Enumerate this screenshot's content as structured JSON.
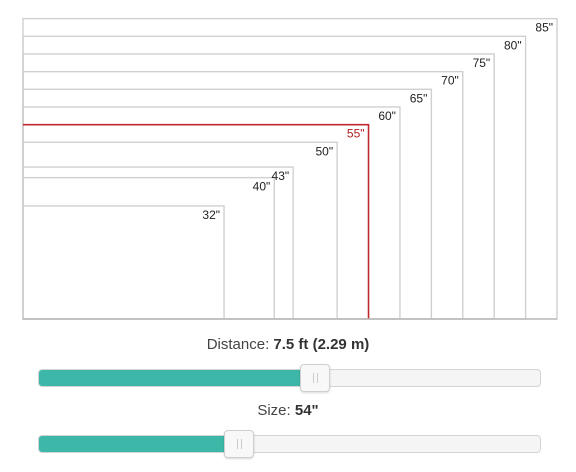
{
  "chart_data": {
    "type": "nested-rectangles",
    "sizes": [
      {
        "label": "32\"",
        "inches": 32
      },
      {
        "label": "40\"",
        "inches": 40
      },
      {
        "label": "43\"",
        "inches": 43
      },
      {
        "label": "50\"",
        "inches": 50
      },
      {
        "label": "55\"",
        "inches": 55
      },
      {
        "label": "60\"",
        "inches": 60
      },
      {
        "label": "65\"",
        "inches": 65
      },
      {
        "label": "70\"",
        "inches": 70
      },
      {
        "label": "75\"",
        "inches": 75
      },
      {
        "label": "80\"",
        "inches": 80
      },
      {
        "label": "85\"",
        "inches": 85
      }
    ],
    "highlighted": "55\"",
    "colors": {
      "outline": "#d0d0d0",
      "highlight": "#c0282d",
      "baseline": "#bdbdbd"
    }
  },
  "distance": {
    "label": "Distance:",
    "value": "7.5 ft (2.29 m)",
    "position_fraction": 0.55
  },
  "size": {
    "label": "Size:",
    "value": "54\"",
    "position_fraction": 0.4
  },
  "colors": {
    "slider_fill": "#3db8a8"
  }
}
